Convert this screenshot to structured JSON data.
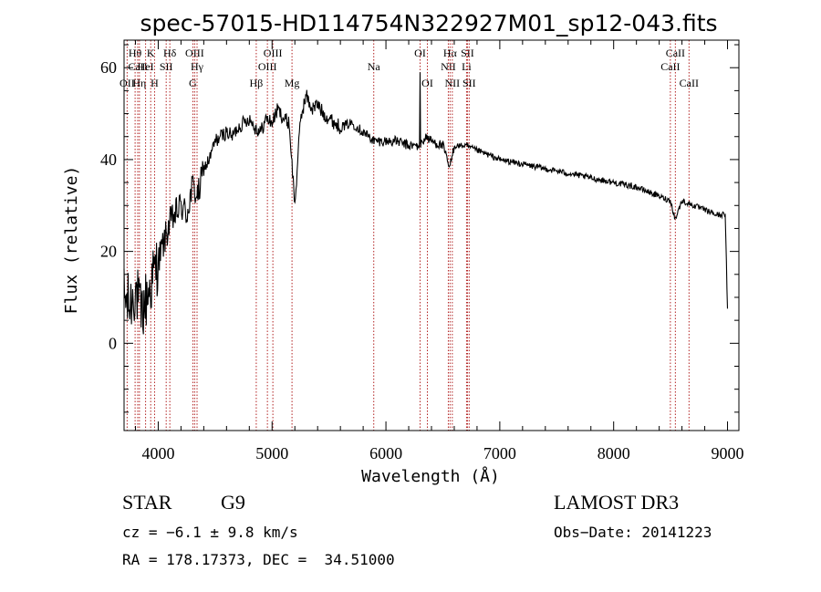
{
  "chart_data": {
    "type": "line",
    "title": "spec-57015-HD114754N322927M01_sp12-043.fits",
    "xlabel": "Wavelength (Å)",
    "ylabel": "Flux (relative)",
    "xlim": [
      3700,
      9100
    ],
    "ylim": [
      -19,
      66
    ],
    "x_ticks": [
      4000,
      5000,
      6000,
      7000,
      8000,
      9000
    ],
    "x_tick_labels": [
      "4000",
      "5000",
      "6000",
      "7000",
      "8000",
      "9000"
    ],
    "y_ticks": [
      0,
      20,
      40,
      60
    ],
    "y_tick_labels": [
      "0",
      "20",
      "40",
      "60"
    ],
    "line_color": "#000000",
    "marker_color": "#b22222",
    "spectrum": {
      "name": "Flux",
      "x": [
        3700,
        3750,
        3800,
        3850,
        3900,
        3950,
        4000,
        4050,
        4100,
        4150,
        4200,
        4250,
        4300,
        4350,
        4400,
        4450,
        4500,
        4550,
        4600,
        4650,
        4700,
        4750,
        4800,
        4850,
        4900,
        4950,
        5000,
        5050,
        5100,
        5150,
        5200,
        5250,
        5300,
        5350,
        5400,
        5450,
        5500,
        5600,
        5700,
        5800,
        5900,
        6000,
        6100,
        6200,
        6300,
        6350,
        6400,
        6500,
        6560,
        6600,
        6700,
        6800,
        6900,
        7000,
        7200,
        7400,
        7600,
        7800,
        8000,
        8200,
        8400,
        8500,
        8540,
        8600,
        8700,
        8800,
        8900,
        8980,
        9000
      ],
      "y": [
        10,
        8,
        12,
        6,
        10,
        14,
        18,
        22,
        26,
        28,
        30,
        28,
        34,
        32,
        38,
        40,
        44,
        45,
        46,
        45,
        47,
        48,
        49,
        47,
        46,
        49,
        48,
        51,
        49,
        48,
        30,
        49,
        54,
        51,
        52,
        50,
        49,
        47,
        48,
        46,
        44,
        44,
        44,
        43,
        43,
        45,
        44,
        43,
        38,
        43,
        43,
        42,
        41,
        40,
        39,
        38,
        37,
        36,
        35,
        34,
        32,
        31,
        27,
        31,
        30,
        29,
        28,
        28,
        7
      ]
    },
    "emission_spike": {
      "x": 6300,
      "y": 59
    },
    "lines": [
      {
        "label": "Hθ",
        "x": 3797,
        "row": 1
      },
      {
        "label": "CaII",
        "x": 3820,
        "row": 2
      },
      {
        "label": "OII",
        "x": 3727,
        "row": 3
      },
      {
        "label": "Hη",
        "x": 3835,
        "row": 3
      },
      {
        "label": "HeI",
        "x": 3889,
        "row": 2
      },
      {
        "label": "K",
        "x": 3934,
        "row": 1
      },
      {
        "label": "H",
        "x": 3968,
        "row": 3
      },
      {
        "label": "SII",
        "x": 4070,
        "row": 2
      },
      {
        "label": "Hδ",
        "x": 4102,
        "row": 1
      },
      {
        "label": "G",
        "x": 4304,
        "row": 3
      },
      {
        "label": "OIII",
        "x": 4320,
        "row": 1
      },
      {
        "label": "Hγ",
        "x": 4341,
        "row": 2
      },
      {
        "label": "Hβ",
        "x": 4861,
        "row": 3
      },
      {
        "label": "OIII",
        "x": 4959,
        "row": 2
      },
      {
        "label": "OIII",
        "x": 5007,
        "row": 1
      },
      {
        "label": "Mg",
        "x": 5175,
        "row": 3
      },
      {
        "label": "Na",
        "x": 5893,
        "row": 2
      },
      {
        "label": "OI",
        "x": 6300,
        "row": 1
      },
      {
        "label": "OI",
        "x": 6364,
        "row": 3
      },
      {
        "label": "NII",
        "x": 6548,
        "row": 2
      },
      {
        "label": "Hα",
        "x": 6563,
        "row": 1
      },
      {
        "label": "NII",
        "x": 6583,
        "row": 3
      },
      {
        "label": "Li",
        "x": 6708,
        "row": 2
      },
      {
        "label": "SII",
        "x": 6716,
        "row": 1
      },
      {
        "label": "SII",
        "x": 6731,
        "row": 3
      },
      {
        "label": "CaII",
        "x": 8498,
        "row": 2
      },
      {
        "label": "CaII",
        "x": 8542,
        "row": 1
      },
      {
        "label": "CaII",
        "x": 8662,
        "row": 3
      }
    ]
  },
  "info": {
    "class_label": "STAR",
    "subclass": "G9",
    "survey": "LAMOST DR3",
    "cz": "cz = −6.1 ± 9.8 km/s",
    "obs_date": "Obs−Date: 20141223",
    "coords": "RA = 178.17373, DEC =  34.51000"
  }
}
